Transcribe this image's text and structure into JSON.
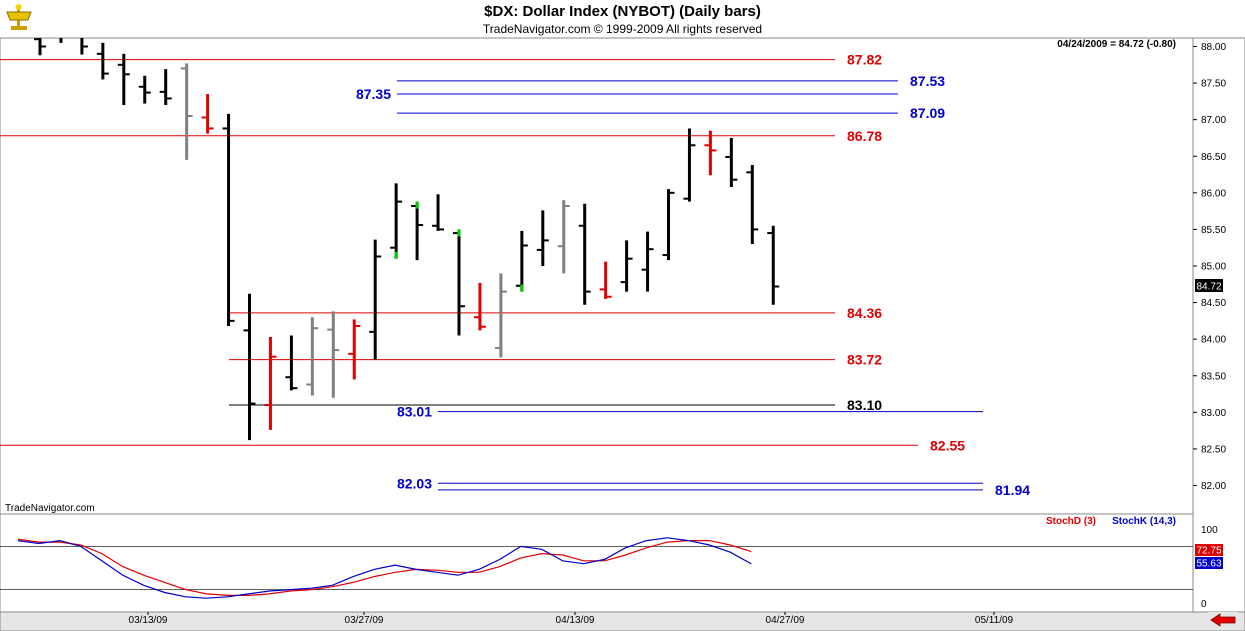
{
  "header": {
    "title": "$DX:  Dollar Index (NYBOT)  (Daily bars)",
    "subtitle": "TradeNavigator.com © 1999-2009 All rights reserved"
  },
  "readout": "04/24/2009 = 84.72 (-0.80)",
  "watermark": "TradeNavigator.com",
  "colors": {
    "red": "#e00000",
    "blue": "#0000cc",
    "black": "#000000",
    "gray": "#808080",
    "green": "#00cc00",
    "panel_bg": "#e6e6e6"
  },
  "chart_data": [
    {
      "type": "bar",
      "subtype": "ohlc",
      "title": "$DX:  Dollar Index (NYBOT)  (Daily bars)",
      "ylim": [
        81.55,
        88.1
      ],
      "y_ticks": [
        "88.00",
        "87.50",
        "87.00",
        "86.50",
        "86.00",
        "85.50",
        "85.00",
        "84.50",
        "84.00",
        "83.50",
        "83.00",
        "82.50",
        "82.00"
      ],
      "x_ticks": [
        "03/13/09",
        "03/27/09",
        "04/13/09",
        "04/27/09",
        "05/11/09"
      ],
      "last_price_label": "84.72",
      "bars": [
        {
          "h": 88.3,
          "l": 87.88,
          "o": 88.1,
          "c": 88.0,
          "color": "black"
        },
        {
          "h": 88.3,
          "l": 88.05,
          "o": 88.2,
          "c": 88.15,
          "color": "black"
        },
        {
          "h": 88.25,
          "l": 87.89,
          "o": 88.2,
          "c": 88.0,
          "color": "black"
        },
        {
          "h": 88.05,
          "l": 87.55,
          "o": 87.9,
          "c": 87.63,
          "color": "black"
        },
        {
          "h": 87.9,
          "l": 87.2,
          "o": 87.75,
          "c": 87.62,
          "color": "black"
        },
        {
          "h": 87.6,
          "l": 87.22,
          "o": 87.45,
          "c": 87.37,
          "color": "black"
        },
        {
          "h": 87.69,
          "l": 87.2,
          "o": 87.38,
          "c": 87.29,
          "color": "black"
        },
        {
          "h": 87.77,
          "l": 86.45,
          "o": 87.7,
          "c": 87.05,
          "color": "gray"
        },
        {
          "h": 87.35,
          "l": 86.81,
          "o": 87.03,
          "c": 86.88,
          "color": "red"
        },
        {
          "h": 87.08,
          "l": 84.18,
          "o": 86.88,
          "c": 84.25,
          "color": "black"
        },
        {
          "h": 84.62,
          "l": 82.62,
          "o": 84.12,
          "c": 83.12,
          "color": "black"
        },
        {
          "h": 84.03,
          "l": 82.76,
          "o": 83.1,
          "c": 83.76,
          "color": "red"
        },
        {
          "h": 84.05,
          "l": 83.3,
          "o": 83.48,
          "c": 83.33,
          "color": "black"
        },
        {
          "h": 84.3,
          "l": 83.23,
          "o": 83.38,
          "c": 84.15,
          "color": "gray"
        },
        {
          "h": 84.38,
          "l": 83.2,
          "o": 84.13,
          "c": 83.85,
          "color": "gray"
        },
        {
          "h": 84.27,
          "l": 83.45,
          "o": 83.8,
          "c": 84.18,
          "color": "red"
        },
        {
          "h": 85.36,
          "l": 83.72,
          "o": 84.1,
          "c": 85.13,
          "color": "black"
        },
        {
          "h": 86.13,
          "l": 85.1,
          "o": 85.25,
          "c": 85.88,
          "color": "black",
          "green_mark": "low"
        },
        {
          "h": 85.88,
          "l": 85.08,
          "o": 85.82,
          "c": 85.56,
          "color": "black",
          "green_mark": "high"
        },
        {
          "h": 85.98,
          "l": 85.48,
          "o": 85.55,
          "c": 85.5,
          "color": "black"
        },
        {
          "h": 85.5,
          "l": 84.05,
          "o": 85.45,
          "c": 84.45,
          "color": "black",
          "green_mark": "high"
        },
        {
          "h": 84.77,
          "l": 84.12,
          "o": 84.3,
          "c": 84.17,
          "color": "red"
        },
        {
          "h": 84.9,
          "l": 83.75,
          "o": 83.88,
          "c": 84.65,
          "color": "gray"
        },
        {
          "h": 85.48,
          "l": 84.65,
          "o": 84.73,
          "c": 85.28,
          "color": "black",
          "green_mark": "low"
        },
        {
          "h": 85.76,
          "l": 85.0,
          "o": 85.22,
          "c": 85.35,
          "color": "black"
        },
        {
          "h": 85.9,
          "l": 84.9,
          "o": 85.27,
          "c": 85.82,
          "color": "gray"
        },
        {
          "h": 85.85,
          "l": 84.47,
          "o": 85.55,
          "c": 84.65,
          "color": "black"
        },
        {
          "h": 85.06,
          "l": 84.55,
          "o": 84.68,
          "c": 84.58,
          "color": "red"
        },
        {
          "h": 85.35,
          "l": 84.65,
          "o": 84.78,
          "c": 85.1,
          "color": "black"
        },
        {
          "h": 85.47,
          "l": 84.65,
          "o": 84.95,
          "c": 85.23,
          "color": "black"
        },
        {
          "h": 86.05,
          "l": 85.08,
          "o": 85.15,
          "c": 86.0,
          "color": "black"
        },
        {
          "h": 86.88,
          "l": 85.88,
          "o": 85.92,
          "c": 86.65,
          "color": "black"
        },
        {
          "h": 86.85,
          "l": 86.24,
          "o": 86.65,
          "c": 86.58,
          "color": "red"
        },
        {
          "h": 86.75,
          "l": 86.08,
          "o": 86.49,
          "c": 86.18,
          "color": "black"
        },
        {
          "h": 86.38,
          "l": 85.3,
          "o": 86.28,
          "c": 85.5,
          "color": "black"
        },
        {
          "h": 85.55,
          "l": 84.47,
          "o": 85.45,
          "c": 84.72,
          "color": "black"
        }
      ],
      "levels": [
        {
          "value": 87.82,
          "label": "87.82",
          "color": "red",
          "x_from": 0,
          "x_to": 835,
          "label_side": "right"
        },
        {
          "value": 87.53,
          "label": "87.53",
          "color": "blue",
          "x_from": 397,
          "x_to": 898,
          "label_side": "right"
        },
        {
          "value": 87.35,
          "label": "87.35",
          "color": "blue",
          "x_from": 397,
          "x_to": 898,
          "label_side": "left"
        },
        {
          "value": 87.09,
          "label": "87.09",
          "color": "blue",
          "x_from": 397,
          "x_to": 898,
          "label_side": "right"
        },
        {
          "value": 86.78,
          "label": "86.78",
          "color": "red",
          "x_from": 0,
          "x_to": 835,
          "label_side": "right"
        },
        {
          "value": 84.36,
          "label": "84.36",
          "color": "red",
          "x_from": 229,
          "x_to": 835,
          "label_side": "right"
        },
        {
          "value": 83.72,
          "label": "83.72",
          "color": "red",
          "x_from": 229,
          "x_to": 835,
          "label_side": "right"
        },
        {
          "value": 83.1,
          "label": "83.10",
          "color": "black",
          "x_from": 229,
          "x_to": 835,
          "label_side": "right"
        },
        {
          "value": 83.01,
          "label": "83.01",
          "color": "blue",
          "x_from": 438,
          "x_to": 983,
          "label_side": "left"
        },
        {
          "value": 82.55,
          "label": "82.55",
          "color": "red",
          "x_from": 0,
          "x_to": 918,
          "label_side": "right"
        },
        {
          "value": 82.03,
          "label": "82.03",
          "color": "blue",
          "x_from": 438,
          "x_to": 983,
          "label_side": "left"
        },
        {
          "value": 81.94,
          "label": "81.94",
          "color": "blue",
          "x_from": 438,
          "x_to": 983,
          "label_side": "right"
        }
      ]
    },
    {
      "type": "line",
      "title": "",
      "ylim": [
        0,
        100
      ],
      "y_ticks": [
        "100",
        "0"
      ],
      "legend": [
        "StochD (3)",
        "StochK (14,3)"
      ],
      "legend_position": "top-right",
      "series": [
        {
          "name": "StochD (3)",
          "color": "red",
          "last_label": "72.75",
          "values": [
            90,
            86,
            86,
            82,
            70,
            52,
            40,
            30,
            20,
            14,
            12,
            12,
            14,
            18,
            20,
            24,
            30,
            38,
            44,
            48,
            47,
            44,
            44,
            52,
            64,
            70,
            68,
            60,
            60,
            68,
            78,
            86,
            88,
            88,
            82,
            72.75
          ]
        },
        {
          "name": "StochK (14,3)",
          "color": "blue",
          "last_label": "55.63",
          "values": [
            88,
            84,
            88,
            80,
            60,
            40,
            26,
            16,
            10,
            8,
            10,
            14,
            18,
            20,
            22,
            26,
            38,
            48,
            54,
            48,
            44,
            40,
            48,
            62,
            80,
            76,
            60,
            56,
            62,
            78,
            88,
            92,
            88,
            82,
            72,
            55.63
          ]
        }
      ]
    }
  ]
}
